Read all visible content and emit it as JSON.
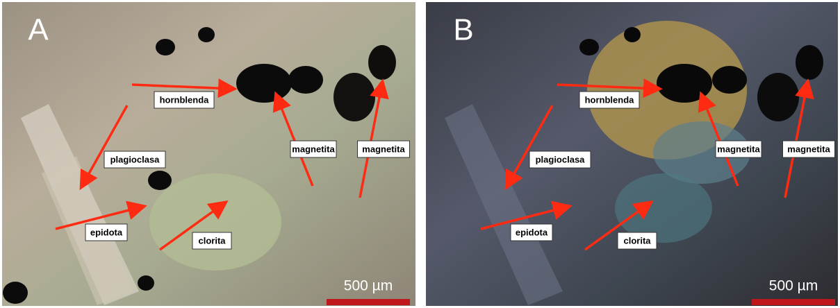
{
  "panels": [
    {
      "letter": "A",
      "labels": [
        "hornblenda",
        "plagioclasa",
        "magnetita",
        "magnetita",
        "epidota",
        "clorita"
      ],
      "scale_bar": "500 µm"
    },
    {
      "letter": "B",
      "labels": [
        "hornblenda",
        "plagioclasa",
        "magnetita",
        "magnetita",
        "epidota",
        "clorita"
      ],
      "scale_bar": "500 µm"
    }
  ]
}
